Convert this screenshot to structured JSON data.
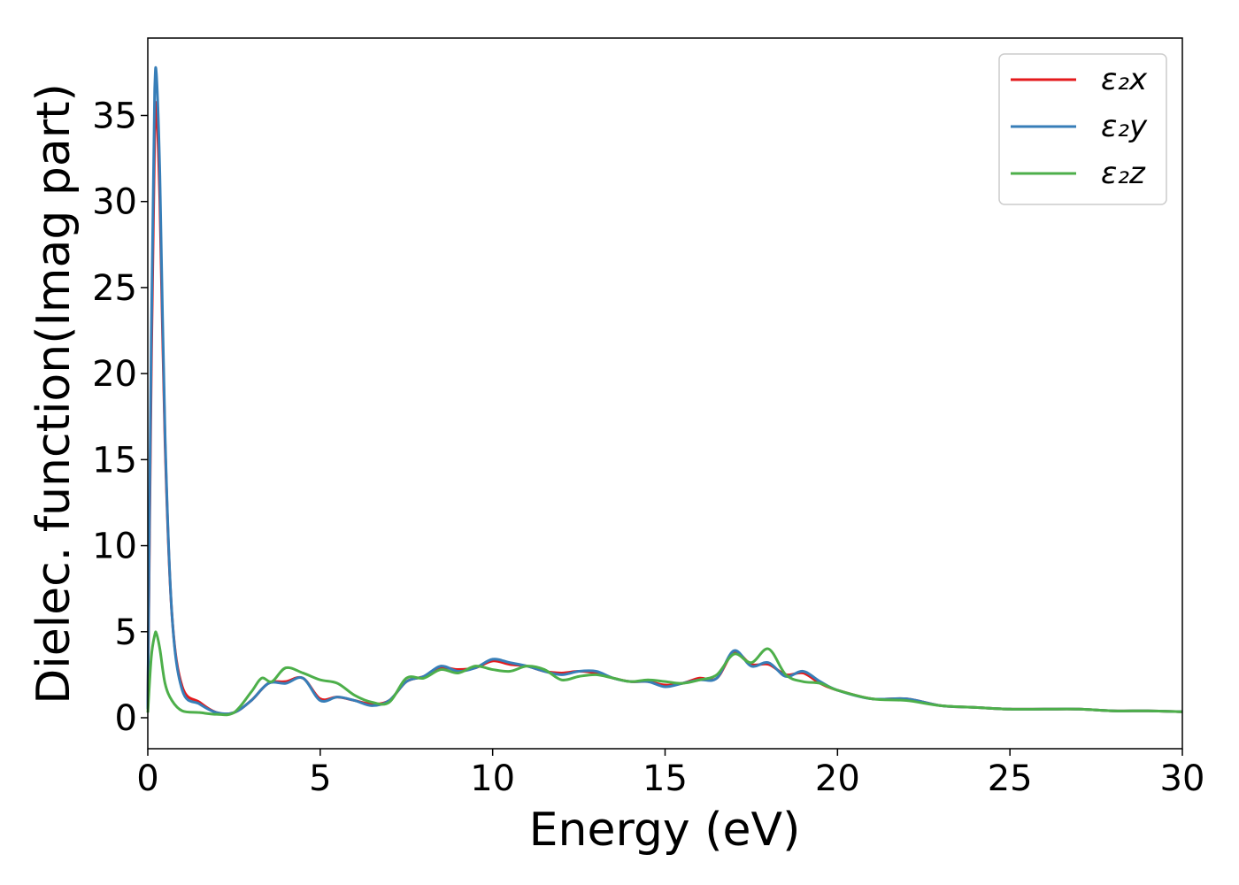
{
  "chart_data": {
    "type": "line",
    "xlabel": "Energy (eV)",
    "ylabel": "Dielec. function(Imag part)",
    "xlim": [
      0,
      30
    ],
    "ylim": [
      -1.8,
      39.5
    ],
    "xticks": [
      "0",
      "5",
      "10",
      "15",
      "20",
      "25",
      "30"
    ],
    "yticks": [
      "0",
      "5",
      "10",
      "15",
      "20",
      "25",
      "30",
      "35"
    ],
    "xtick_values": [
      0,
      5,
      10,
      15,
      20,
      25,
      30
    ],
    "ytick_values": [
      0,
      5,
      10,
      15,
      20,
      25,
      30,
      35
    ],
    "grid": false,
    "legend_position": "top-right",
    "series": [
      {
        "name": "ε₂x",
        "color": "#e41a1c",
        "x": [
          0,
          0.1,
          0.2,
          0.25,
          0.35,
          0.5,
          0.7,
          1.0,
          1.5,
          2.0,
          2.5,
          3.0,
          3.5,
          4.0,
          4.5,
          5.0,
          5.5,
          6.0,
          6.5,
          7.0,
          7.5,
          8.0,
          8.5,
          9.0,
          9.5,
          10.0,
          10.5,
          11.0,
          11.5,
          12.0,
          12.5,
          13.0,
          13.5,
          14.0,
          14.5,
          15.0,
          15.5,
          16.0,
          16.5,
          17.0,
          17.5,
          18.0,
          18.5,
          19.0,
          19.5,
          20.0,
          21.0,
          22.0,
          23.0,
          24.0,
          25.0,
          26.0,
          27.0,
          28.0,
          29.0,
          30.0
        ],
        "values": [
          0.5,
          20.0,
          34.0,
          35.4,
          30.0,
          16.0,
          6.0,
          1.8,
          0.9,
          0.3,
          0.3,
          1.0,
          2.0,
          2.1,
          2.3,
          1.1,
          1.2,
          1.0,
          0.8,
          1.0,
          2.1,
          2.4,
          2.9,
          2.8,
          2.9,
          3.3,
          3.1,
          3.0,
          2.7,
          2.6,
          2.7,
          2.6,
          2.3,
          2.1,
          2.1,
          1.9,
          2.0,
          2.3,
          2.3,
          3.8,
          3.1,
          3.1,
          2.5,
          2.6,
          2.0,
          1.6,
          1.1,
          1.1,
          0.7,
          0.6,
          0.5,
          0.5,
          0.5,
          0.4,
          0.4,
          0.35
        ]
      },
      {
        "name": "ε₂y",
        "color": "#377eb8",
        "x": [
          0,
          0.1,
          0.2,
          0.25,
          0.35,
          0.5,
          0.7,
          1.0,
          1.5,
          2.0,
          2.5,
          3.0,
          3.5,
          4.0,
          4.5,
          5.0,
          5.5,
          6.0,
          6.5,
          7.0,
          7.5,
          8.0,
          8.5,
          9.0,
          9.5,
          10.0,
          10.5,
          11.0,
          11.5,
          12.0,
          12.5,
          13.0,
          13.5,
          14.0,
          14.5,
          15.0,
          15.5,
          16.0,
          16.5,
          17.0,
          17.5,
          18.0,
          18.5,
          19.0,
          19.5,
          20.0,
          21.0,
          22.0,
          23.0,
          24.0,
          25.0,
          26.0,
          27.0,
          28.0,
          29.0,
          30.0
        ],
        "values": [
          0.5,
          22.0,
          36.5,
          37.4,
          31.5,
          16.5,
          6.0,
          1.6,
          0.8,
          0.3,
          0.3,
          1.0,
          2.0,
          2.0,
          2.3,
          1.0,
          1.2,
          1.0,
          0.7,
          1.0,
          2.1,
          2.4,
          3.0,
          2.7,
          2.9,
          3.4,
          3.2,
          3.0,
          2.7,
          2.5,
          2.7,
          2.7,
          2.3,
          2.1,
          2.1,
          1.8,
          2.0,
          2.2,
          2.3,
          3.9,
          3.0,
          3.2,
          2.4,
          2.7,
          2.1,
          1.6,
          1.1,
          1.1,
          0.7,
          0.6,
          0.5,
          0.5,
          0.5,
          0.4,
          0.4,
          0.35
        ]
      },
      {
        "name": "ε₂z",
        "color": "#4daf4a",
        "x": [
          0,
          0.1,
          0.2,
          0.25,
          0.35,
          0.5,
          0.7,
          1.0,
          1.5,
          2.0,
          2.5,
          3.0,
          3.3,
          3.6,
          4.0,
          4.5,
          5.0,
          5.5,
          6.0,
          6.5,
          7.0,
          7.5,
          8.0,
          8.5,
          9.0,
          9.5,
          10.0,
          10.5,
          11.0,
          11.5,
          12.0,
          12.5,
          13.0,
          13.5,
          14.0,
          14.5,
          15.0,
          15.5,
          16.0,
          16.5,
          17.0,
          17.5,
          18.0,
          18.5,
          19.0,
          19.5,
          20.0,
          21.0,
          22.0,
          23.0,
          24.0,
          25.0,
          26.0,
          27.0,
          28.0,
          29.0,
          30.0
        ],
        "values": [
          0.3,
          3.5,
          4.8,
          4.9,
          4.0,
          2.0,
          1.0,
          0.4,
          0.3,
          0.2,
          0.3,
          1.5,
          2.3,
          2.1,
          2.9,
          2.6,
          2.2,
          2.0,
          1.3,
          0.9,
          0.9,
          2.3,
          2.3,
          2.8,
          2.6,
          3.0,
          2.8,
          2.7,
          3.0,
          2.8,
          2.2,
          2.4,
          2.5,
          2.3,
          2.1,
          2.2,
          2.1,
          2.0,
          2.2,
          2.5,
          3.7,
          3.2,
          4.0,
          2.5,
          2.1,
          2.0,
          1.6,
          1.1,
          1.0,
          0.7,
          0.6,
          0.5,
          0.5,
          0.5,
          0.4,
          0.4,
          0.35
        ]
      }
    ]
  }
}
